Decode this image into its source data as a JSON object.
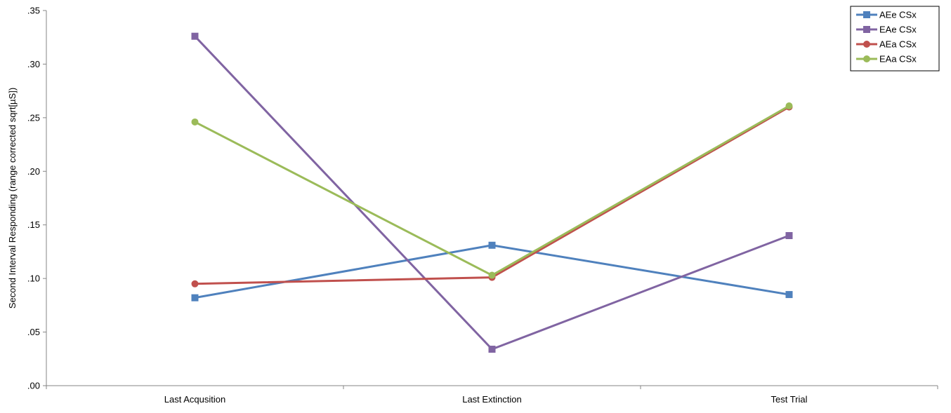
{
  "chart_data": {
    "type": "line",
    "title": "",
    "xlabel": "",
    "ylabel": "Second Interval Responding (range corrected sqrt[µS])",
    "categories": [
      "Last Acqusition",
      "Last Extinction",
      "Test Trial"
    ],
    "ylim": [
      0,
      0.35
    ],
    "yticks": [
      0,
      0.05,
      0.1,
      0.15,
      0.2,
      0.25,
      0.3,
      0.35
    ],
    "ytick_labels": [
      ".00",
      ".05",
      ".10",
      ".15",
      ".20",
      ".25",
      ".30",
      ".35"
    ],
    "grid": false,
    "legend_position": "top-right",
    "series": [
      {
        "name": "AEe CSx",
        "values": [
          0.082,
          0.131,
          0.085
        ],
        "color": "#4F81BD",
        "marker": "square"
      },
      {
        "name": "EAe CSx",
        "values": [
          0.326,
          0.034,
          0.14
        ],
        "color": "#8064A2",
        "marker": "square"
      },
      {
        "name": "AEa CSx",
        "values": [
          0.095,
          0.101,
          0.26
        ],
        "color": "#C0504D",
        "marker": "circle"
      },
      {
        "name": "EAa CSx",
        "values": [
          0.246,
          0.103,
          0.261
        ],
        "color": "#9BBB59",
        "marker": "circle"
      }
    ]
  }
}
